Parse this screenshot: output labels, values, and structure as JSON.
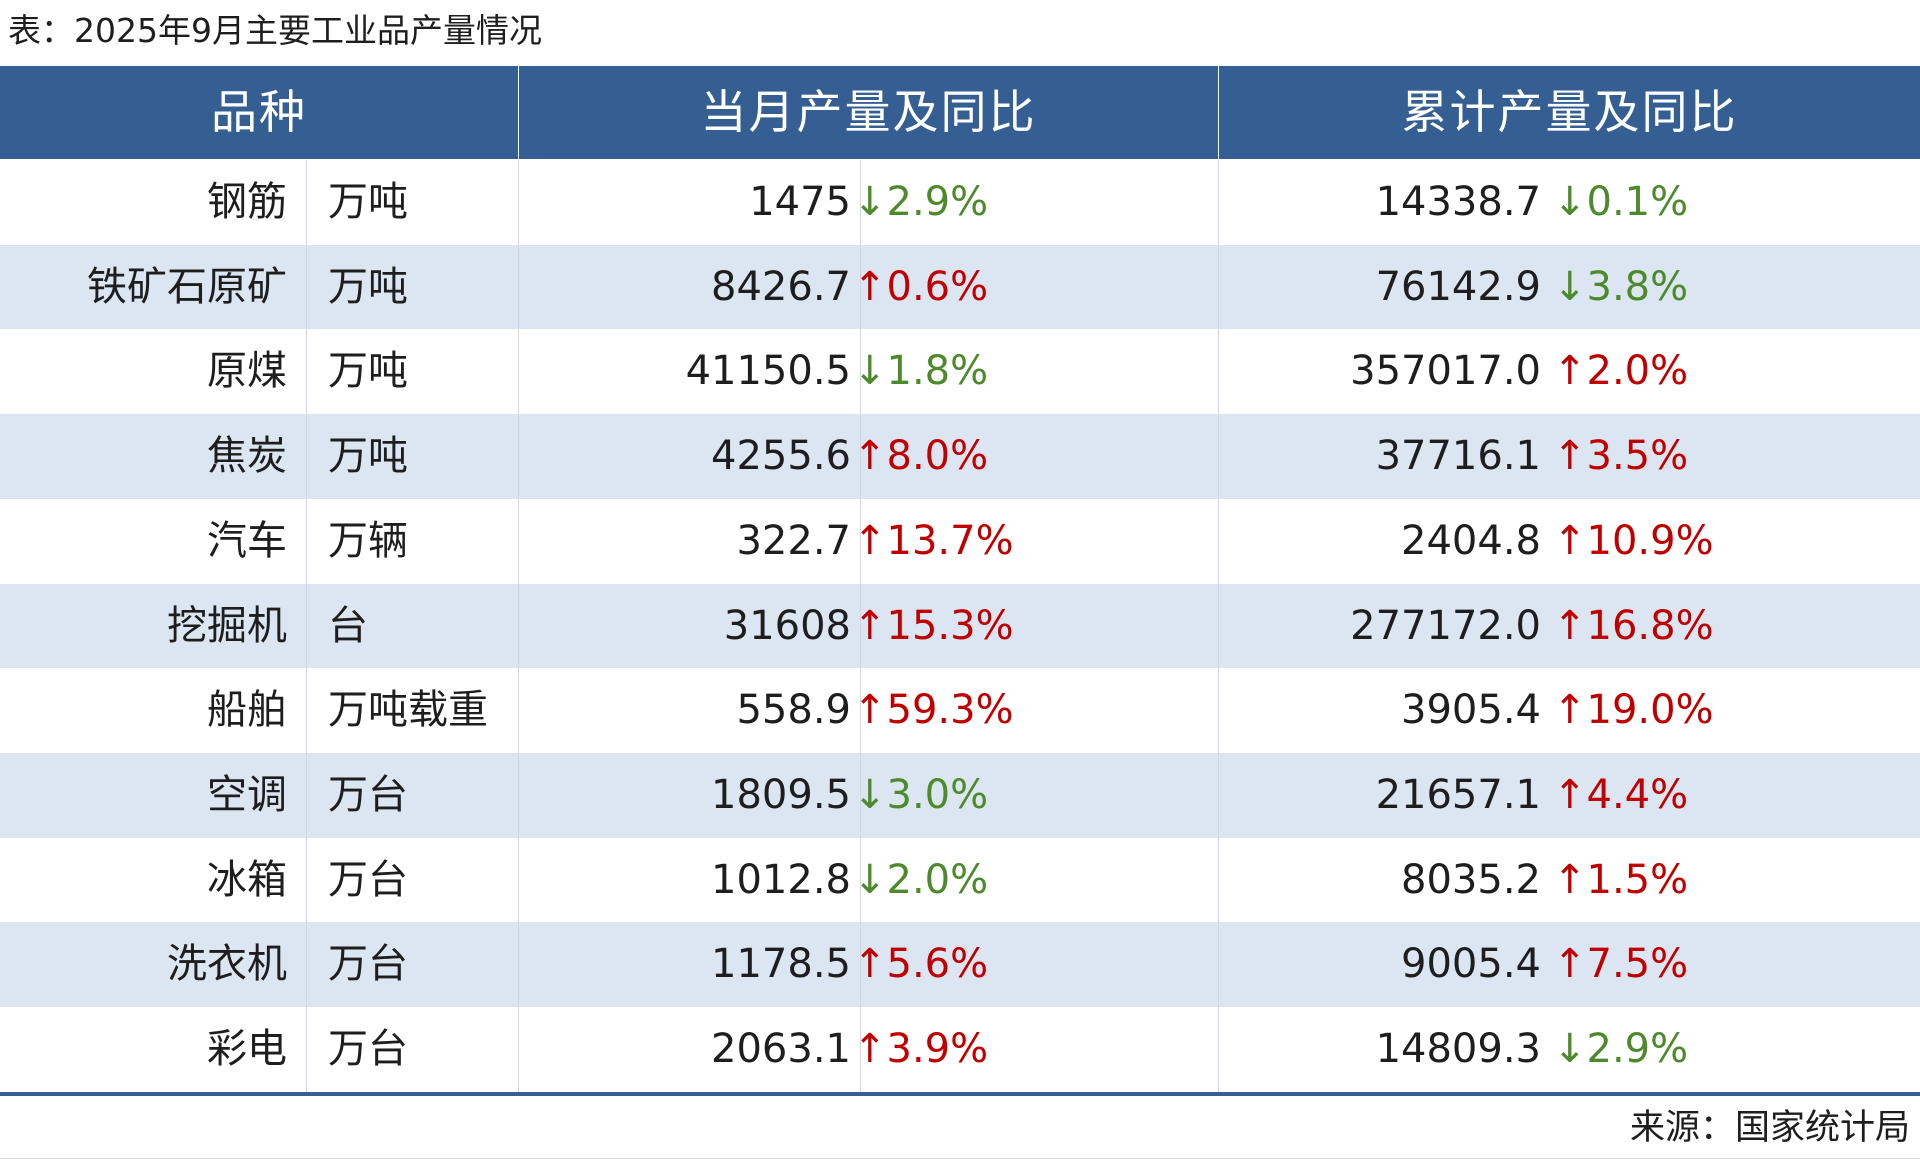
{
  "title": "表：2025年9月主要工业品产量情况",
  "table": {
    "headers": [
      "品种",
      "当月产量及同比",
      "累计产量及同比"
    ],
    "rows": [
      [
        "钢筋",
        "万吨",
        "1475",
        "↓2.9%",
        "14338.7",
        "↓0.1%"
      ],
      [
        "铁矿石原矿",
        "万吨",
        "8426.7",
        "↑0.6%",
        "76142.9",
        "↓3.8%"
      ],
      [
        "原煤",
        "万吨",
        "41150.5",
        "↓1.8%",
        "357017.0",
        "↑2.0%"
      ],
      [
        "焦炭",
        "万吨",
        "4255.6",
        "↑8.0%",
        "37716.1",
        "↑3.5%"
      ],
      [
        "汽车",
        "万辆",
        "322.7",
        "↑13.7%",
        "2404.8",
        "↑10.9%"
      ],
      [
        "挖掘机",
        "台",
        "31608",
        "↑15.3%",
        "277172.0",
        "↑16.8%"
      ],
      [
        "船舶",
        "万吨载重",
        "558.9",
        "↑59.3%",
        "3905.4",
        "↑19.0%"
      ],
      [
        "空调",
        "万台",
        "1809.5",
        "↓3.0%",
        "21657.1",
        "↑4.4%"
      ],
      [
        "冰箱",
        "万台",
        "1012.8",
        "↓2.0%",
        "8035.2",
        "↑1.5%"
      ],
      [
        "洗衣机",
        "万台",
        "1178.5",
        "↑5.6%",
        "9005.4",
        "↑7.5%"
      ],
      [
        "彩电",
        "万台",
        "2063.1",
        "↑3.9%",
        "14809.3",
        "↓2.9%"
      ]
    ],
    "change_colors": [
      [
        "#4d8a2c",
        "#4d8a2c"
      ],
      [
        "#c00000",
        "#4d8a2c"
      ],
      [
        "#4d8a2c",
        "#c00000"
      ],
      [
        "#c00000",
        "#c00000"
      ],
      [
        "#c00000",
        "#c00000"
      ],
      [
        "#c00000",
        "#c00000"
      ],
      [
        "#c00000",
        "#c00000"
      ],
      [
        "#4d8a2c",
        "#c00000"
      ],
      [
        "#4d8a2c",
        "#c00000"
      ],
      [
        "#c00000",
        "#c00000"
      ],
      [
        "#c00000",
        "#4d8a2c"
      ]
    ]
  },
  "source": "来源：国家统计局"
}
